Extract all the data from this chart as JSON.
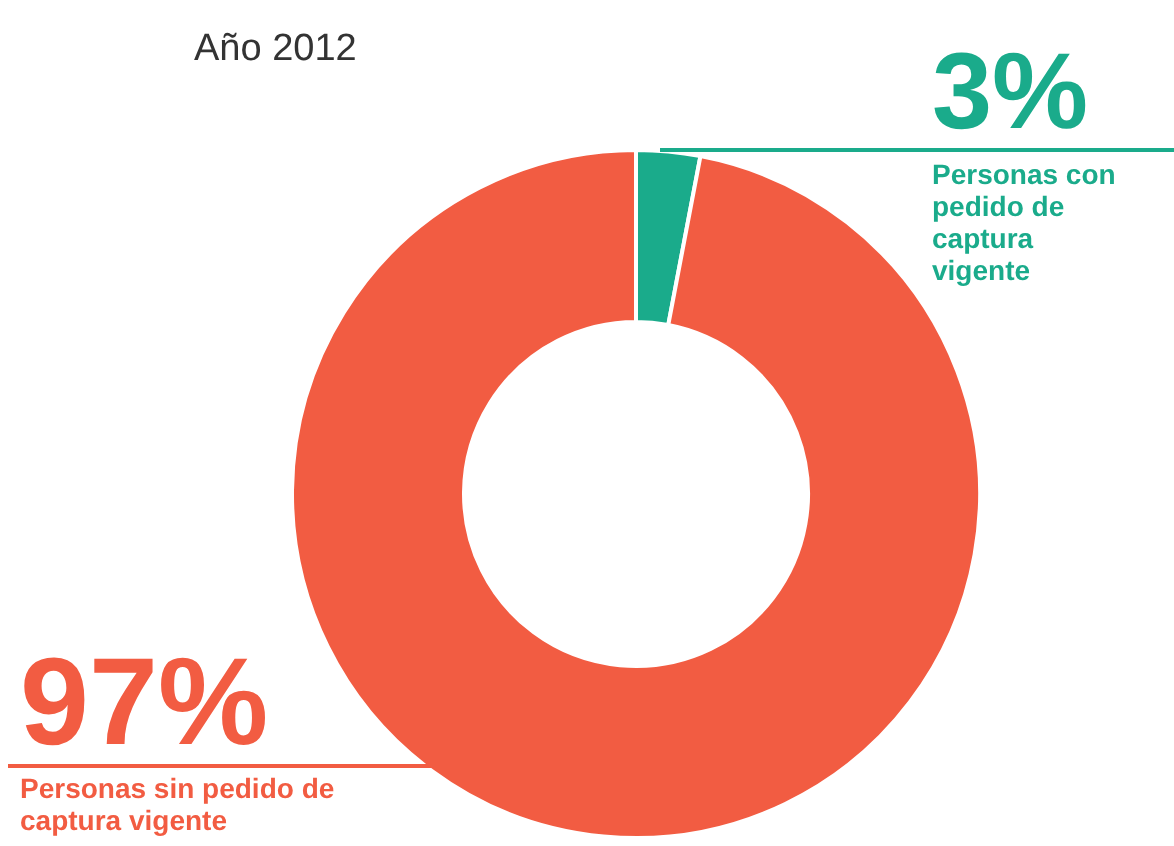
{
  "chart_data": {
    "type": "donut",
    "title": "Año 2012",
    "categories": [
      "Personas con pedido de captura vigente",
      "Personas sin pedido de captura vigente"
    ],
    "values": [
      3,
      97
    ],
    "colors": [
      "#1aab8b",
      "#f25c42"
    ],
    "value_labels": [
      "3%",
      "97%"
    ]
  }
}
